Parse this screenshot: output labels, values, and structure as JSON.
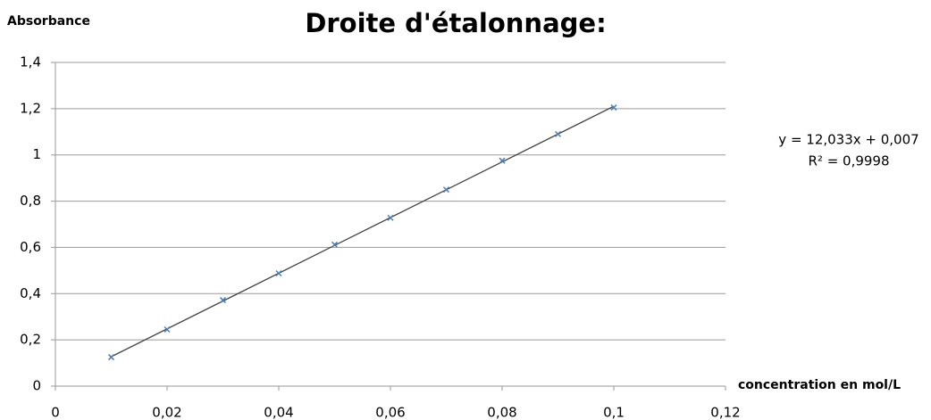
{
  "chart_data": {
    "type": "scatter",
    "title": "Droite d'étalonnage:",
    "y_label": "Absorbance",
    "x_label": "concentration en mol/L",
    "x": [
      0.01,
      0.02,
      0.03,
      0.04,
      0.05,
      0.06,
      0.07,
      0.08,
      0.09,
      0.1
    ],
    "series": [
      {
        "color": "#4a7ebb",
        "values": [
          0.125,
          0.245,
          0.372,
          0.488,
          0.612,
          0.728,
          0.85,
          0.975,
          1.09,
          1.205
        ]
      }
    ],
    "trendline": {
      "color": "#404040",
      "slope": 12.033,
      "intercept": 0.007,
      "equation": "y = 12,033x + 0,007",
      "r2_label": "R² = 0,9998"
    },
    "xlim": [
      0,
      0.12
    ],
    "xticks": [
      0,
      {
        "value": 0.02,
        "label": "0,02"
      },
      {
        "value": 0.04,
        "label": "0,04"
      },
      {
        "value": 0.06,
        "label": "0,06"
      },
      {
        "value": 0.08,
        "label": "0,08"
      },
      {
        "value": 0.1,
        "label": "0,1"
      },
      {
        "value": 0.12,
        "label": "0,12"
      }
    ],
    "ylim": [
      0,
      1.4
    ],
    "yticks": [
      0,
      {
        "value": 0.2,
        "label": "0,2"
      },
      {
        "value": 0.4,
        "label": "0,4"
      },
      {
        "value": 0.6,
        "label": "0,6"
      },
      {
        "value": 0.8,
        "label": "0,8"
      },
      1,
      {
        "value": 1.2,
        "label": "1,2"
      },
      {
        "value": 1.4,
        "label": "1,4"
      }
    ],
    "grid": true
  }
}
